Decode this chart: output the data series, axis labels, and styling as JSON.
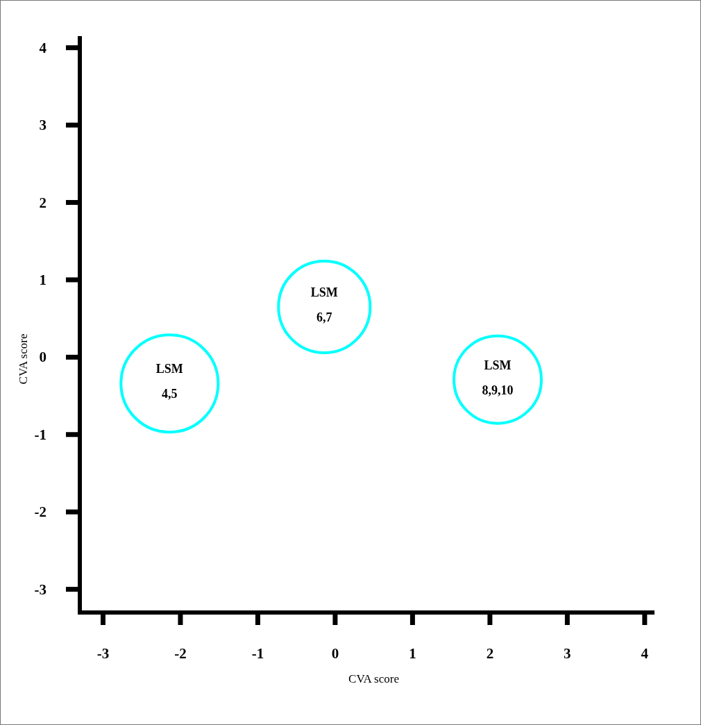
{
  "chart_data": {
    "type": "bubble",
    "xlabel": "CVA score",
    "ylabel": "CVA score",
    "x": [
      -2.14,
      -0.14,
      2.1
    ],
    "series": [
      {
        "color": "#00ffff",
        "values": [
          -0.34,
          0.65,
          -0.29
        ],
        "sizes": [
          1,
          0.89,
          0.81
        ]
      }
    ],
    "xlim": [
      -3.3,
      4.1
    ],
    "xticks": [
      -3,
      -2,
      -1,
      0,
      1,
      2,
      3,
      4
    ],
    "ylim": [
      -3.3,
      4.15
    ],
    "yticks": [
      -3,
      -2,
      -1,
      0,
      1,
      2,
      3,
      4
    ],
    "grid": false,
    "annotations": [
      {
        "text": "LSM\n4,5",
        "x": -2.14,
        "y": -0.34
      },
      {
        "text": "LSM\n6,7",
        "x": -0.14,
        "y": 0.65
      },
      {
        "text": "LSM\n8,9,10",
        "x": 2.1,
        "y": -0.29
      }
    ]
  }
}
